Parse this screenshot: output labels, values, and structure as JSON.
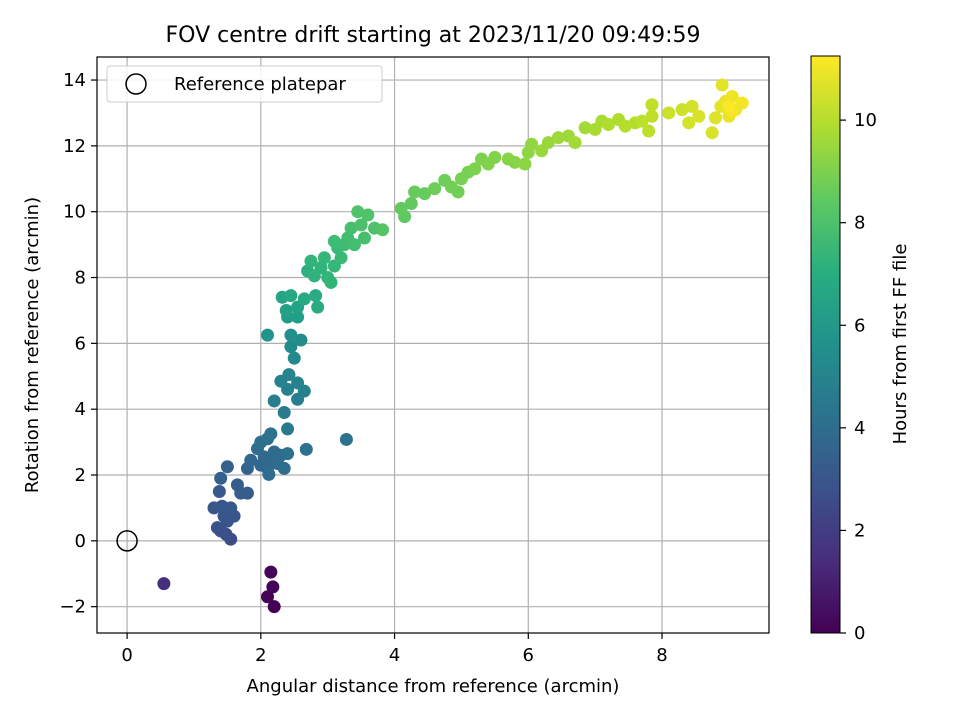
{
  "chart_data": {
    "type": "scatter",
    "title": "FOV centre drift starting at 2023/11/20 09:49:59",
    "xlabel": "Angular distance from reference (arcmin)",
    "ylabel": "Rotation from reference (arcmin)",
    "xlim": [
      -0.45,
      9.6
    ],
    "ylim": [
      -2.8,
      14.7
    ],
    "xticks": [
      0,
      2,
      4,
      6,
      8
    ],
    "yticks": [
      -2,
      0,
      2,
      4,
      6,
      8,
      10,
      12,
      14
    ],
    "grid": true,
    "legend": {
      "position": "top-left",
      "entries": [
        "Reference platepar"
      ]
    },
    "colorbar": {
      "label": "Hours from first FF file",
      "range": [
        0,
        11.25
      ],
      "ticks": [
        0,
        2,
        4,
        6,
        8,
        10
      ],
      "colormap": "viridis"
    },
    "reference_point": {
      "x": 0,
      "y": 0,
      "label": "Reference platepar"
    },
    "series": [
      {
        "points": [
          [
            2.15,
            -0.95,
            0.2
          ],
          [
            2.18,
            -1.4,
            0.1
          ],
          [
            2.1,
            -1.7,
            0.05
          ],
          [
            2.2,
            -2.0,
            0.0
          ],
          [
            0.55,
            -1.3,
            1.5
          ],
          [
            1.55,
            0.05,
            2.6
          ],
          [
            1.48,
            0.2,
            2.7
          ],
          [
            1.4,
            0.3,
            2.8
          ],
          [
            1.35,
            0.4,
            2.8
          ],
          [
            1.5,
            0.6,
            2.9
          ],
          [
            1.45,
            0.75,
            3.0
          ],
          [
            1.6,
            0.75,
            3.0
          ],
          [
            1.3,
            1.0,
            3.0
          ],
          [
            1.42,
            1.05,
            3.1
          ],
          [
            1.55,
            1.0,
            3.1
          ],
          [
            1.38,
            1.5,
            3.2
          ],
          [
            1.7,
            1.45,
            3.3
          ],
          [
            1.8,
            1.45,
            3.3
          ],
          [
            1.65,
            1.7,
            3.3
          ],
          [
            1.4,
            1.9,
            3.4
          ],
          [
            1.5,
            2.25,
            3.5
          ],
          [
            1.8,
            2.2,
            3.6
          ],
          [
            1.85,
            2.45,
            3.7
          ],
          [
            2.0,
            2.3,
            3.7
          ],
          [
            2.05,
            2.55,
            3.8
          ],
          [
            2.15,
            2.5,
            3.8
          ],
          [
            2.1,
            2.2,
            3.8
          ],
          [
            2.2,
            2.7,
            3.9
          ],
          [
            2.3,
            2.6,
            3.9
          ],
          [
            2.35,
            2.2,
            4.0
          ],
          [
            2.12,
            2.02,
            4.0
          ],
          [
            2.25,
            2.35,
            4.0
          ],
          [
            1.95,
            2.8,
            4.0
          ],
          [
            2.0,
            3.0,
            4.1
          ],
          [
            2.15,
            3.25,
            4.2
          ],
          [
            2.1,
            3.1,
            4.2
          ],
          [
            2.4,
            2.65,
            4.2
          ],
          [
            2.68,
            2.78,
            4.2
          ],
          [
            3.28,
            3.08,
            4.3
          ],
          [
            2.4,
            3.4,
            4.6
          ],
          [
            2.35,
            3.9,
            4.7
          ],
          [
            2.2,
            4.25,
            4.8
          ],
          [
            2.55,
            4.3,
            4.8
          ],
          [
            2.4,
            4.6,
            4.9
          ],
          [
            2.65,
            4.55,
            4.9
          ],
          [
            2.3,
            4.85,
            5.0
          ],
          [
            2.55,
            4.8,
            5.0
          ],
          [
            2.42,
            5.05,
            5.1
          ],
          [
            2.5,
            5.55,
            5.3
          ],
          [
            2.45,
            5.9,
            5.4
          ],
          [
            2.6,
            6.1,
            5.5
          ],
          [
            2.45,
            6.25,
            5.6
          ],
          [
            2.1,
            6.25,
            5.8
          ],
          [
            2.4,
            6.8,
            6.2
          ],
          [
            2.55,
            6.8,
            6.3
          ],
          [
            2.38,
            7.0,
            6.4
          ],
          [
            2.55,
            7.1,
            6.5
          ],
          [
            2.32,
            7.4,
            6.6
          ],
          [
            2.45,
            7.45,
            6.7
          ],
          [
            2.65,
            7.35,
            6.8
          ],
          [
            2.85,
            7.1,
            6.9
          ],
          [
            2.82,
            7.45,
            6.9
          ],
          [
            2.7,
            8.2,
            7.1
          ],
          [
            2.8,
            8.05,
            7.2
          ],
          [
            2.75,
            8.5,
            7.3
          ],
          [
            2.9,
            8.3,
            7.3
          ],
          [
            3.0,
            8.0,
            7.4
          ],
          [
            3.05,
            7.85,
            7.4
          ],
          [
            2.95,
            8.6,
            7.5
          ],
          [
            3.1,
            8.35,
            7.5
          ],
          [
            3.2,
            8.6,
            7.6
          ],
          [
            3.15,
            8.9,
            7.6
          ],
          [
            3.1,
            9.1,
            7.7
          ],
          [
            3.25,
            9.0,
            7.7
          ],
          [
            3.3,
            9.2,
            7.8
          ],
          [
            3.4,
            9.0,
            7.8
          ],
          [
            3.35,
            9.5,
            7.9
          ],
          [
            3.55,
            9.2,
            7.9
          ],
          [
            3.5,
            9.6,
            8.0
          ],
          [
            3.7,
            9.5,
            8.0
          ],
          [
            3.45,
            10.0,
            8.1
          ],
          [
            3.6,
            9.9,
            8.1
          ],
          [
            3.82,
            9.45,
            8.2
          ],
          [
            4.15,
            9.85,
            8.4
          ],
          [
            4.1,
            10.1,
            8.5
          ],
          [
            4.25,
            10.25,
            8.5
          ],
          [
            4.3,
            10.6,
            8.6
          ],
          [
            4.45,
            10.55,
            8.6
          ],
          [
            4.6,
            10.7,
            8.7
          ],
          [
            4.75,
            10.95,
            8.7
          ],
          [
            4.85,
            10.75,
            8.8
          ],
          [
            4.95,
            10.6,
            8.8
          ],
          [
            5.0,
            11.0,
            8.9
          ],
          [
            5.1,
            11.2,
            8.9
          ],
          [
            5.2,
            11.3,
            9.0
          ],
          [
            5.3,
            11.6,
            9.0
          ],
          [
            5.4,
            11.45,
            9.1
          ],
          [
            5.5,
            11.65,
            9.1
          ],
          [
            5.7,
            11.6,
            9.2
          ],
          [
            5.8,
            11.5,
            9.2
          ],
          [
            5.95,
            11.45,
            9.3
          ],
          [
            6.0,
            11.8,
            9.3
          ],
          [
            6.05,
            12.05,
            9.4
          ],
          [
            6.2,
            11.85,
            9.5
          ],
          [
            6.3,
            12.1,
            9.5
          ],
          [
            6.45,
            12.25,
            9.6
          ],
          [
            6.6,
            12.3,
            9.6
          ],
          [
            6.7,
            12.1,
            9.7
          ],
          [
            6.85,
            12.55,
            9.7
          ],
          [
            7.0,
            12.5,
            9.8
          ],
          [
            7.1,
            12.75,
            9.8
          ],
          [
            7.2,
            12.65,
            9.9
          ],
          [
            7.35,
            12.8,
            9.9
          ],
          [
            7.45,
            12.6,
            10.0
          ],
          [
            7.6,
            12.7,
            10.0
          ],
          [
            7.7,
            12.75,
            10.1
          ],
          [
            7.8,
            12.45,
            10.1
          ],
          [
            7.85,
            12.9,
            10.2
          ],
          [
            7.85,
            13.25,
            10.2
          ],
          [
            8.1,
            13.0,
            10.4
          ],
          [
            8.3,
            13.1,
            10.4
          ],
          [
            8.4,
            12.7,
            10.5
          ],
          [
            8.45,
            13.2,
            10.5
          ],
          [
            8.55,
            12.9,
            10.6
          ],
          [
            8.75,
            12.4,
            10.6
          ],
          [
            8.8,
            12.85,
            10.7
          ],
          [
            8.88,
            13.2,
            10.8
          ],
          [
            8.9,
            13.85,
            10.8
          ],
          [
            8.95,
            13.35,
            10.9
          ],
          [
            9.0,
            12.9,
            10.9
          ],
          [
            9.05,
            13.5,
            11.0
          ],
          [
            9.1,
            13.1,
            11.0
          ],
          [
            9.2,
            13.3,
            11.1
          ],
          [
            9.05,
            13.05,
            11.1
          ],
          [
            9.0,
            13.2,
            11.2
          ]
        ]
      }
    ]
  }
}
